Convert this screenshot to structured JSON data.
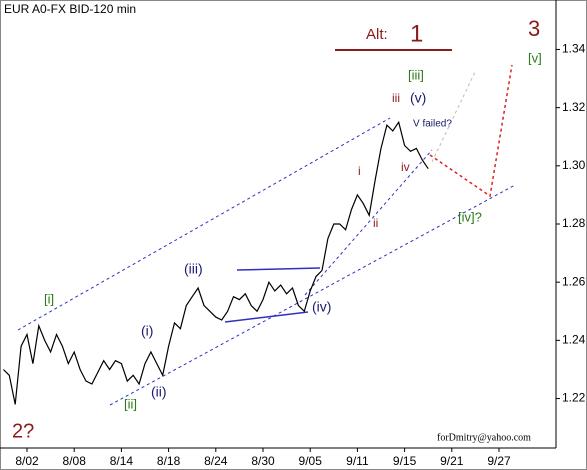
{
  "chart_data": {
    "type": "line",
    "title": "EUR A0-FX BID-120 min",
    "categories": [
      null,
      null,
      null,
      null,
      "8/02",
      null,
      null,
      null,
      null,
      null,
      null,
      null,
      "8/08",
      null,
      null,
      null,
      null,
      null,
      null,
      null,
      "8/14",
      null,
      null,
      null,
      null,
      null,
      null,
      null,
      "8/18",
      null,
      null,
      null,
      null,
      null,
      null,
      null,
      "8/24",
      null,
      null,
      null,
      null,
      null,
      null,
      null,
      "8/30",
      null,
      null,
      null,
      null,
      null,
      null,
      null,
      "9/05",
      null,
      null,
      null,
      null,
      null,
      null,
      null,
      "9/11",
      null,
      null,
      null,
      null,
      null,
      null,
      null,
      "9/15",
      null,
      null,
      null,
      null,
      null,
      null,
      null,
      "9/21",
      null,
      null,
      null,
      null,
      null,
      null,
      null,
      "9/27",
      null,
      null,
      null,
      null,
      null,
      null,
      null,
      null,
      null
    ],
    "series": [
      {
        "name": "EUR",
        "color": "#000000",
        "values": [
          1.23,
          1.228,
          1.218,
          1.238,
          1.242,
          1.232,
          1.245,
          1.24,
          1.236,
          1.242,
          1.238,
          1.232,
          1.236,
          1.23,
          1.226,
          1.225,
          1.229,
          1.233,
          1.23,
          1.233,
          1.232,
          1.226,
          1.228,
          1.225,
          1.232,
          1.236,
          1.232,
          1.228,
          1.238,
          1.246,
          1.244,
          1.252,
          1.255,
          1.258,
          1.252,
          1.25,
          1.248,
          1.247,
          1.25,
          1.255,
          1.254,
          1.256,
          1.252,
          1.25,
          1.254,
          1.26,
          1.257,
          1.259,
          1.256,
          1.258,
          1.252,
          1.25,
          1.257,
          1.262,
          1.264,
          1.275,
          1.28,
          1.28,
          1.278,
          1.285,
          1.29,
          1.287,
          1.283,
          1.295,
          1.306,
          1.314,
          1.312,
          1.315,
          1.307,
          1.305,
          1.306,
          1.302,
          1.299,
          null,
          null,
          null,
          null,
          null,
          null,
          null,
          null,
          null,
          null,
          null,
          null,
          null,
          null,
          null,
          null,
          null,
          null,
          null,
          null,
          null
        ]
      }
    ],
    "ylim": [
      1.203,
      1.357
    ],
    "yticks": [
      1.22,
      1.24,
      1.26,
      1.28,
      {
        "value": 1.3,
        "label": "1.30"
      },
      1.32,
      1.34
    ],
    "annotations": [
      "Alt:",
      "1",
      "3",
      "[v]",
      "[iii]",
      "iii",
      "(v)",
      "V failed?",
      "i",
      "iv",
      "ii",
      "[iv]?",
      "(iii)",
      "(i)",
      "(ii)",
      "[ii]",
      "(iv)",
      "[i]",
      "2?",
      "forDmitry@yahoo.com"
    ]
  }
}
